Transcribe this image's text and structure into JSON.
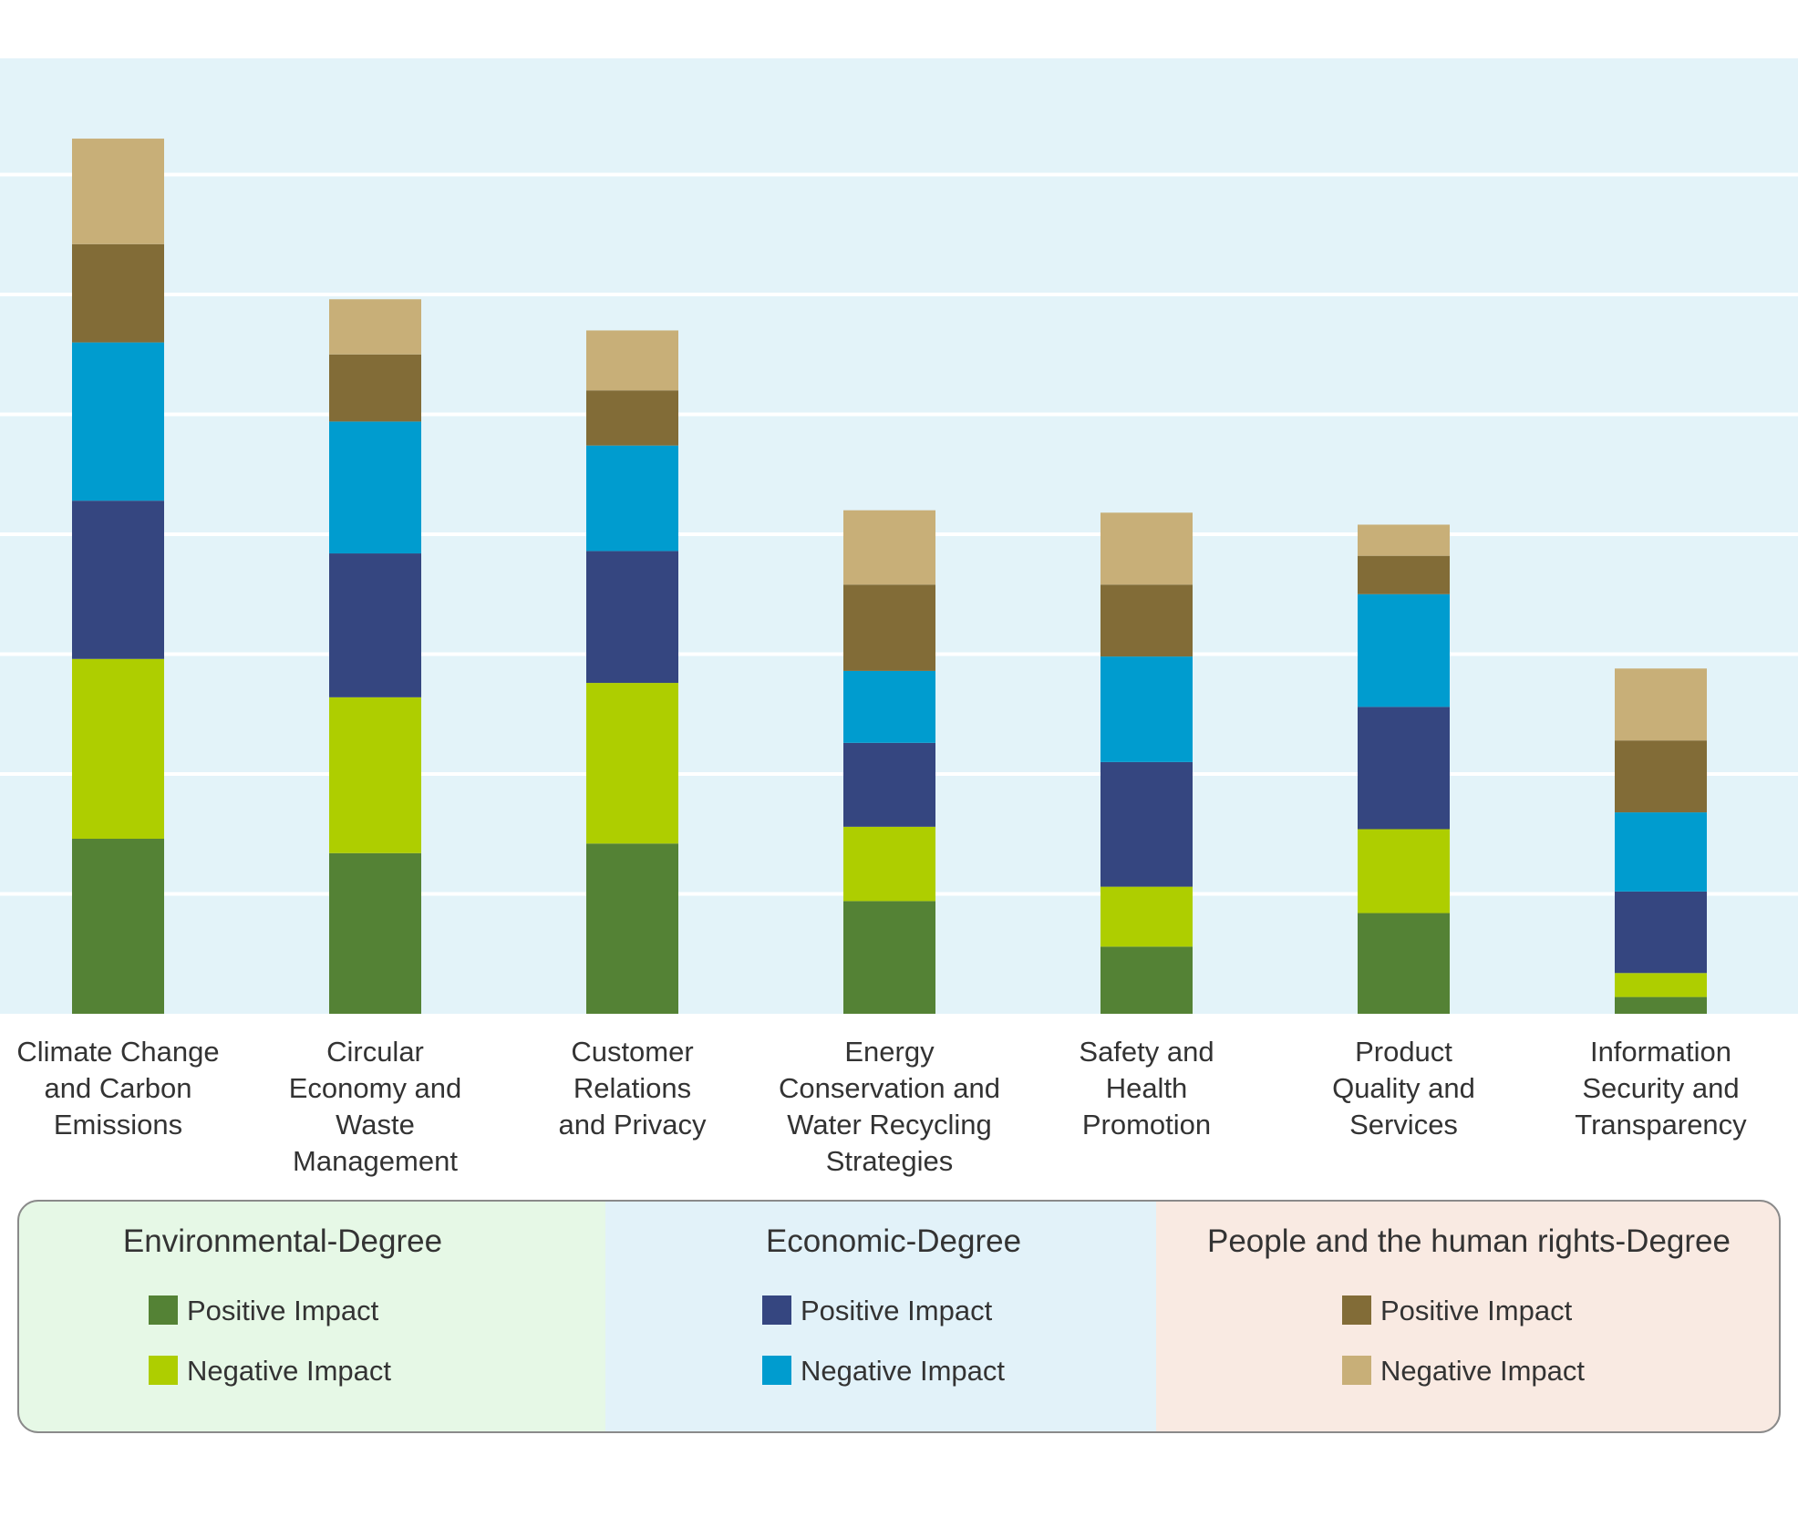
{
  "chart_data": {
    "type": "bar",
    "stacked": true,
    "grid": true,
    "ylim": [
      0,
      8
    ],
    "categories": [
      [
        "Climate Change",
        "and Carbon",
        "Emissions"
      ],
      [
        "Circular",
        "Economy and",
        "Waste",
        "Management"
      ],
      [
        "Customer",
        "Relations",
        "and Privacy"
      ],
      [
        "Energy",
        "Conservation and",
        "Water Recycling",
        "Strategies"
      ],
      [
        "Safety and",
        "Health",
        "Promotion"
      ],
      [
        "Product",
        "Quality and",
        "Services"
      ],
      [
        "Information",
        "Security and",
        "Transparency"
      ]
    ],
    "series": [
      {
        "name": "Positive Impact",
        "group": "Environmental-Degree",
        "color": "#548235",
        "values": [
          1.46,
          1.34,
          1.42,
          0.94,
          0.56,
          0.84,
          0.14
        ]
      },
      {
        "name": "Negative Impact",
        "group": "Environmental-Degree",
        "color": "#AECE00",
        "values": [
          1.5,
          1.3,
          1.34,
          0.62,
          0.5,
          0.7,
          0.2
        ]
      },
      {
        "name": "Positive Impact",
        "group": "Economic-Degree",
        "color": "#354680",
        "values": [
          1.32,
          1.2,
          1.1,
          0.7,
          1.04,
          1.02,
          0.68
        ]
      },
      {
        "name": "Negative Impact",
        "group": "Economic-Degree",
        "color": "#009CCF",
        "values": [
          1.32,
          1.1,
          0.88,
          0.6,
          0.88,
          0.94,
          0.66
        ]
      },
      {
        "name": "Positive Impact",
        "group": "People and the human rights-Degree",
        "color": "#826C37",
        "values": [
          0.82,
          0.56,
          0.46,
          0.72,
          0.6,
          0.32,
          0.6
        ]
      },
      {
        "name": "Negative Impact",
        "group": "People and the human rights-Degree",
        "color": "#C8AF78",
        "values": [
          0.88,
          0.46,
          0.5,
          0.62,
          0.6,
          0.26,
          0.6
        ]
      }
    ]
  },
  "legend": {
    "groups": [
      {
        "title": "Environmental-Degree",
        "bg": "#E6F8E6",
        "items": [
          {
            "label": "Positive Impact",
            "color": "#548235"
          },
          {
            "label": "Negative Impact",
            "color": "#AECE00"
          }
        ]
      },
      {
        "title": "Economic-Degree",
        "bg": "#E2F2F9",
        "items": [
          {
            "label": "Positive Impact",
            "color": "#354680"
          },
          {
            "label": "Negative Impact",
            "color": "#009CCF"
          }
        ]
      },
      {
        "title": "People and the human rights-Degree",
        "bg": "#F9EAE2",
        "items": [
          {
            "label": "Positive Impact",
            "color": "#826C37"
          },
          {
            "label": "Negative Impact",
            "color": "#C8AF78"
          }
        ]
      }
    ]
  },
  "colors": {
    "plot_bg": "#E3F3F9",
    "gridline": "#FFFFFF",
    "legend_border": "#8A8A8A",
    "text": "#333333"
  }
}
